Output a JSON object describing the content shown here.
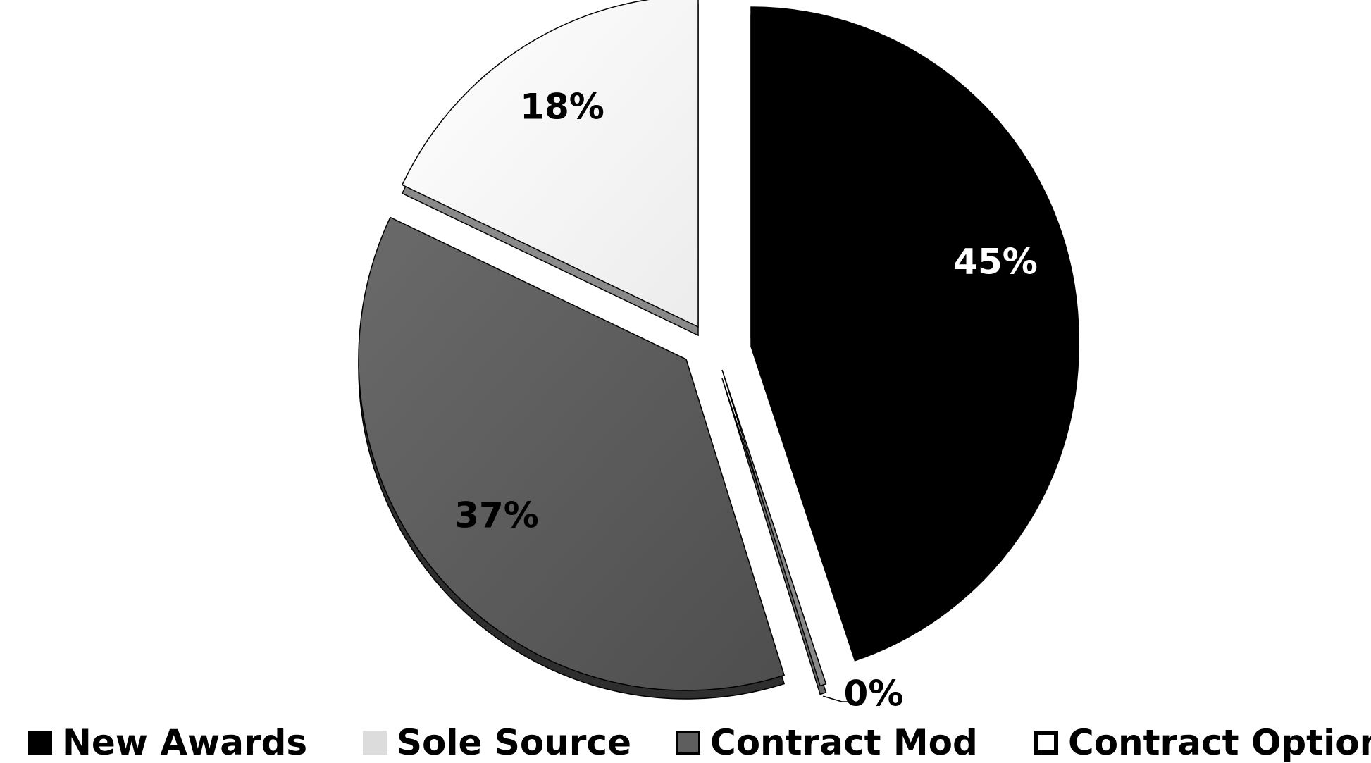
{
  "chart_data": {
    "type": "pie",
    "title": "",
    "series": [
      {
        "name": "New Awards",
        "value": 45,
        "label": "45%",
        "color": "#000000"
      },
      {
        "name": "Contract Option",
        "value": 0.3,
        "label": "0%",
        "color": "#ffffff"
      },
      {
        "name": "Contract Mod",
        "value": 37,
        "label": "37%",
        "color": "#5e5e5e"
      },
      {
        "name": "Sole Source",
        "value": 18,
        "label": "18%",
        "color": "#f4f4f4"
      }
    ],
    "legend": {
      "position": "bottom",
      "items": [
        {
          "name": "New Awards",
          "color": "#000000"
        },
        {
          "name": "Sole Source",
          "color": "#dcdcdc"
        },
        {
          "name": "Contract Mod",
          "color": "#5e5e5e"
        },
        {
          "name": "Contract Option",
          "color": "#ffffff"
        }
      ]
    },
    "exploded": true,
    "three_d": true
  }
}
